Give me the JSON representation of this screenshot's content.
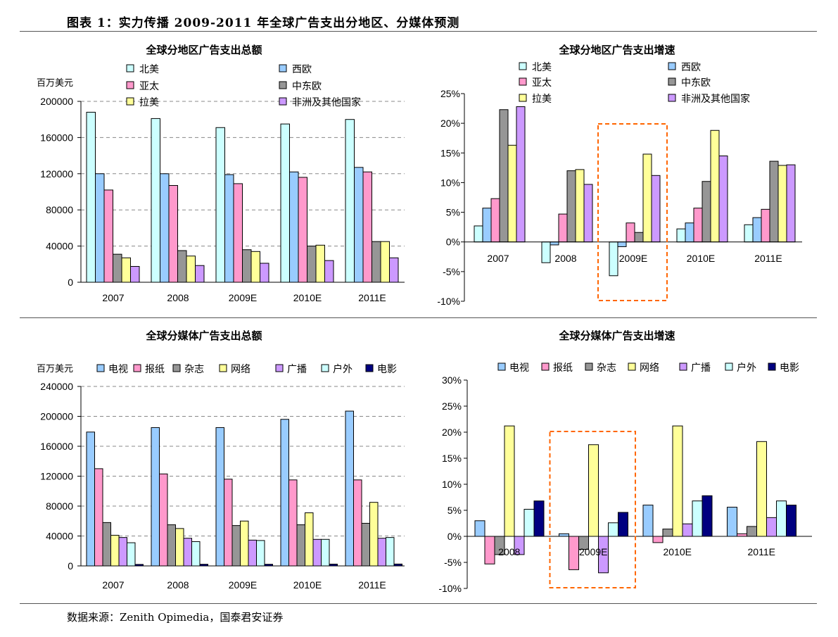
{
  "header": {
    "title": "图表 1：实力传播 2009-2011 年全球广告支出分地区、分媒体预测"
  },
  "footer": {
    "source": "数据来源：Zenith Opimedia，国泰君安证券"
  },
  "colors": {
    "北美": "#ccffff",
    "西欧": "#99ccff",
    "亚太": "#ff99cc",
    "中东欧": "#969696",
    "拉美": "#ffff99",
    "非洲及其他国家": "#cc99ff",
    "电视": "#99ccff",
    "报纸": "#ff99cc",
    "杂志": "#969696",
    "网络": "#ffff99",
    "广播": "#cc99ff",
    "户外": "#ccffff",
    "电影": "#000080",
    "highlight_box": "#ff6600"
  },
  "chart_data": [
    {
      "type": "bar",
      "title": "全球分地区广告支出总额",
      "unit": "百万美元",
      "categories": [
        "2007",
        "2008",
        "2009E",
        "2010E",
        "2011E"
      ],
      "ylim": [
        0,
        200000
      ],
      "yticks": [
        "0",
        "40000",
        "80000",
        "120000",
        "160000",
        "200000"
      ],
      "grid": true,
      "legend": "top",
      "series": [
        {
          "name": "北美",
          "values": [
            188000,
            181000,
            171000,
            175000,
            180000
          ]
        },
        {
          "name": "西欧",
          "values": [
            120000,
            120000,
            119000,
            122000,
            127000
          ]
        },
        {
          "name": "亚太",
          "values": [
            102000,
            107000,
            109000,
            116000,
            122000
          ]
        },
        {
          "name": "中东欧",
          "values": [
            31000,
            35000,
            36000,
            40000,
            45000
          ]
        },
        {
          "name": "拉美",
          "values": [
            27000,
            29000,
            34000,
            41000,
            45000
          ]
        },
        {
          "name": "非洲及其他国家",
          "values": [
            17500,
            18500,
            21000,
            24000,
            27000
          ]
        }
      ]
    },
    {
      "type": "bar",
      "title": "全球分地区广告支出增速",
      "categories": [
        "2007",
        "2008",
        "2009E",
        "2010E",
        "2011E"
      ],
      "ylim": [
        -10,
        25
      ],
      "yticks": [
        "-10%",
        "-5%",
        "0%",
        "5%",
        "10%",
        "15%",
        "20%",
        "25%"
      ],
      "grid": false,
      "legend": "top",
      "highlight": "2009E",
      "series": [
        {
          "name": "北美",
          "values": [
            2.7,
            -3.5,
            -5.7,
            2.2,
            2.9
          ]
        },
        {
          "name": "西欧",
          "values": [
            5.7,
            -0.5,
            -0.8,
            3.2,
            4.1
          ]
        },
        {
          "name": "亚太",
          "values": [
            7.3,
            4.7,
            3.2,
            5.7,
            5.5
          ]
        },
        {
          "name": "中东欧",
          "values": [
            22.3,
            12.0,
            1.6,
            10.2,
            13.6
          ]
        },
        {
          "name": "拉美",
          "values": [
            16.3,
            12.2,
            14.8,
            18.8,
            12.9
          ]
        },
        {
          "name": "非洲及其他国家",
          "values": [
            22.8,
            9.7,
            11.2,
            14.5,
            13.0
          ]
        }
      ]
    },
    {
      "type": "bar",
      "title": "全球分媒体广告支出总额",
      "unit": "百万美元",
      "categories": [
        "2007",
        "2008",
        "2009E",
        "2010E",
        "2011E"
      ],
      "ylim": [
        0,
        240000
      ],
      "yticks": [
        "0",
        "40000",
        "80000",
        "120000",
        "160000",
        "200000",
        "240000"
      ],
      "grid": true,
      "legend": "top",
      "series": [
        {
          "name": "电视",
          "values": [
            179000,
            185000,
            185000,
            196000,
            207000
          ]
        },
        {
          "name": "报纸",
          "values": [
            130000,
            123000,
            116000,
            115000,
            115000
          ]
        },
        {
          "name": "杂志",
          "values": [
            58000,
            55000,
            54000,
            55000,
            57000
          ]
        },
        {
          "name": "网络",
          "values": [
            41000,
            50000,
            60000,
            71000,
            85000
          ]
        },
        {
          "name": "广播",
          "values": [
            38000,
            37000,
            34500,
            35500,
            37000
          ]
        },
        {
          "name": "户外",
          "values": [
            31000,
            32500,
            34000,
            35500,
            38000
          ]
        },
        {
          "name": "电影",
          "values": [
            2000,
            2200,
            2200,
            2400,
            2500
          ]
        }
      ]
    },
    {
      "type": "bar",
      "title": "全球分媒体广告支出增速",
      "categories": [
        "2008",
        "2009E",
        "2010E",
        "2011E"
      ],
      "ylim": [
        -10,
        30
      ],
      "yticks": [
        "-10%",
        "-5%",
        "0%",
        "5%",
        "10%",
        "15%",
        "20%",
        "25%",
        "30%"
      ],
      "grid": false,
      "legend": "top",
      "highlight": "2009E",
      "series": [
        {
          "name": "电视",
          "values": [
            3.0,
            0.5,
            6.0,
            5.6
          ]
        },
        {
          "name": "报纸",
          "values": [
            -5.3,
            -6.4,
            -1.2,
            0.5
          ]
        },
        {
          "name": "杂志",
          "values": [
            -3.5,
            -2.5,
            1.4,
            1.9
          ]
        },
        {
          "name": "网络",
          "values": [
            21.2,
            17.6,
            21.2,
            18.2
          ]
        },
        {
          "name": "广播",
          "values": [
            -3.5,
            -7.0,
            2.4,
            3.6
          ]
        },
        {
          "name": "户外",
          "values": [
            5.2,
            2.6,
            6.8,
            6.8
          ]
        },
        {
          "name": "电影",
          "values": [
            6.8,
            4.6,
            7.8,
            6.0
          ]
        }
      ]
    }
  ]
}
